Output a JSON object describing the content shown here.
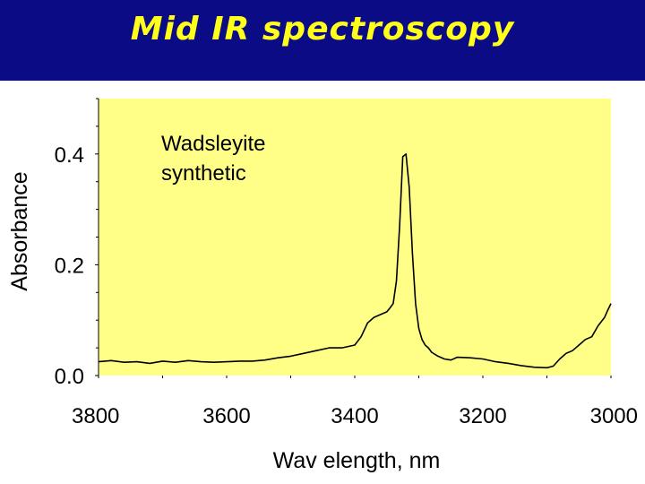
{
  "slide": {
    "title": "Mid IR spectroscopy"
  },
  "colors": {
    "banner": "#0b0b86",
    "title": "#ffff1a",
    "plot_background": "#ffff88",
    "line": "#000000"
  },
  "chart_data": {
    "type": "line",
    "title": "",
    "xlabel": "Wav elength,  nm",
    "ylabel": "Absorbance",
    "xlim": [
      3800,
      3000
    ],
    "ylim": [
      0.0,
      0.5
    ],
    "x_reversed": true,
    "x_ticks": [
      3800,
      3600,
      3400,
      3200,
      3000
    ],
    "x_tick_labels": [
      "3800",
      "3600",
      "3400",
      "3200",
      "3000"
    ],
    "y_ticks": [
      0.0,
      0.2,
      0.4
    ],
    "y_tick_labels": [
      "0.0",
      "0.2",
      "0.4"
    ],
    "grid": false,
    "annotations": [
      {
        "lines": [
          "Wadsleyite",
          "synthetic"
        ],
        "position": "top-left"
      }
    ],
    "series": [
      {
        "x": [
          3800,
          3780,
          3760,
          3740,
          3720,
          3700,
          3680,
          3660,
          3640,
          3620,
          3600,
          3580,
          3560,
          3540,
          3520,
          3500,
          3480,
          3460,
          3440,
          3420,
          3400,
          3390,
          3380,
          3370,
          3360,
          3350,
          3345,
          3340,
          3335,
          3330,
          3325,
          3320,
          3315,
          3310,
          3305,
          3300,
          3295,
          3290,
          3285,
          3280,
          3270,
          3260,
          3250,
          3240,
          3220,
          3200,
          3180,
          3160,
          3140,
          3120,
          3100,
          3090,
          3080,
          3070,
          3060,
          3050,
          3040,
          3030,
          3020,
          3010,
          3005,
          3000
        ],
        "y": [
          0.025,
          0.027,
          0.024,
          0.025,
          0.022,
          0.026,
          0.024,
          0.027,
          0.025,
          0.024,
          0.025,
          0.026,
          0.026,
          0.028,
          0.032,
          0.035,
          0.04,
          0.045,
          0.05,
          0.05,
          0.055,
          0.07,
          0.095,
          0.105,
          0.11,
          0.115,
          0.122,
          0.13,
          0.17,
          0.27,
          0.395,
          0.4,
          0.34,
          0.22,
          0.13,
          0.085,
          0.065,
          0.055,
          0.05,
          0.042,
          0.035,
          0.03,
          0.028,
          0.033,
          0.032,
          0.03,
          0.025,
          0.022,
          0.018,
          0.015,
          0.014,
          0.017,
          0.03,
          0.04,
          0.045,
          0.055,
          0.065,
          0.07,
          0.09,
          0.105,
          0.118,
          0.13
        ]
      }
    ]
  }
}
